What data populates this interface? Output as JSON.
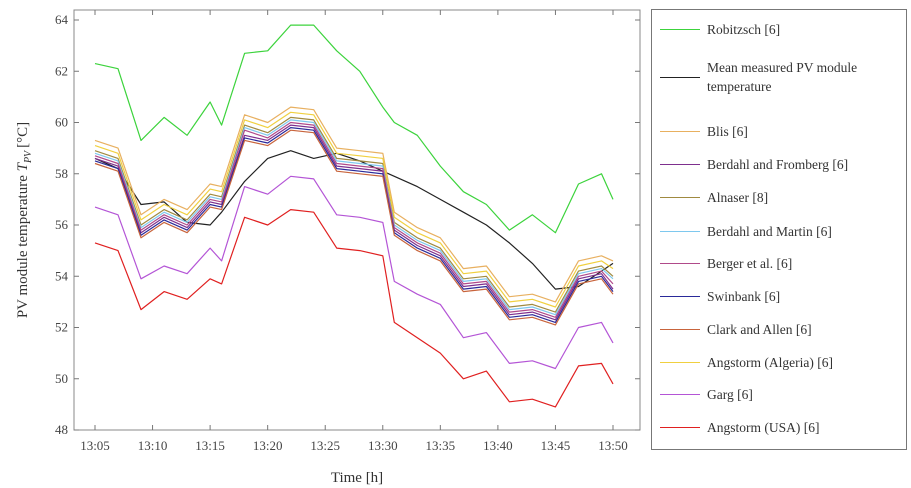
{
  "chart_data": {
    "type": "line",
    "xlabel": "Time [h]",
    "ylabel": "PV module temperature",
    "ylabel_symbol": "T",
    "ylabel_subscript": "PV",
    "ylabel_unit": "[°C]",
    "ylim": [
      48,
      64
    ],
    "yticks": [
      48,
      50,
      52,
      54,
      56,
      58,
      60,
      62,
      64
    ],
    "xlim": [
      "13:05",
      "13:50"
    ],
    "xticks": [
      "13:05",
      "13:10",
      "13:15",
      "13:20",
      "13:25",
      "13:30",
      "13:35",
      "13:40",
      "13:45",
      "13:50"
    ],
    "grid": false,
    "legend_position": "right",
    "x": [
      "13:05",
      "13:07",
      "13:09",
      "13:11",
      "13:13",
      "13:15",
      "13:16",
      "13:18",
      "13:20",
      "13:22",
      "13:24",
      "13:26",
      "13:28",
      "13:30",
      "13:31",
      "13:33",
      "13:35",
      "13:37",
      "13:39",
      "13:41",
      "13:43",
      "13:45",
      "13:47",
      "13:49",
      "13:50"
    ],
    "series": [
      {
        "name": "Robitzsch [6]",
        "color": "#3cd33c",
        "values": [
          62.3,
          62.1,
          59.3,
          60.2,
          59.5,
          60.8,
          59.9,
          62.7,
          62.8,
          63.8,
          63.8,
          62.8,
          62.0,
          60.6,
          60.0,
          59.5,
          58.3,
          57.3,
          56.8,
          55.8,
          56.4,
          55.7,
          57.6,
          58.0,
          57.0
        ]
      },
      {
        "name": "Mean measured PV module temperature",
        "color": "#222222",
        "values": [
          58.6,
          58.2,
          56.8,
          56.9,
          56.1,
          56.0,
          56.5,
          57.7,
          58.6,
          58.9,
          58.6,
          58.8,
          58.5,
          58.1,
          57.9,
          57.5,
          57.0,
          56.5,
          56.0,
          55.3,
          54.5,
          53.5,
          53.6,
          54.2,
          54.5
        ]
      },
      {
        "name": "Blis [6]",
        "color": "#e8b060",
        "values": [
          59.3,
          59.0,
          56.4,
          57.0,
          56.6,
          57.6,
          57.5,
          60.3,
          60.0,
          60.6,
          60.5,
          59.0,
          58.9,
          58.8,
          56.5,
          55.9,
          55.5,
          54.3,
          54.4,
          53.2,
          53.3,
          53.0,
          54.6,
          54.8,
          54.6
        ]
      },
      {
        "name": "Berdahl and Fromberg [6]",
        "color": "#7e2f8e",
        "values": [
          58.6,
          58.3,
          55.7,
          56.3,
          55.9,
          56.9,
          56.8,
          59.5,
          59.3,
          59.9,
          59.8,
          58.3,
          58.2,
          58.1,
          55.8,
          55.2,
          54.8,
          53.6,
          53.7,
          52.5,
          52.6,
          52.3,
          53.9,
          54.1,
          53.5
        ]
      },
      {
        "name": "Alnaser [8]",
        "color": "#a08a40",
        "values": [
          58.9,
          58.6,
          56.0,
          56.6,
          56.2,
          57.2,
          57.1,
          59.9,
          59.6,
          60.2,
          60.1,
          58.6,
          58.5,
          58.4,
          56.1,
          55.5,
          55.1,
          53.9,
          54.0,
          52.8,
          52.9,
          52.6,
          54.2,
          54.4,
          54.0
        ]
      },
      {
        "name": "Berdahl and Martin [6]",
        "color": "#7ec8ee",
        "values": [
          58.8,
          58.5,
          55.9,
          56.5,
          56.1,
          57.1,
          57.0,
          59.8,
          59.5,
          60.1,
          60.0,
          58.5,
          58.4,
          58.3,
          56.0,
          55.4,
          55.0,
          53.8,
          53.9,
          52.7,
          52.8,
          52.5,
          54.1,
          54.3,
          53.9
        ]
      },
      {
        "name": "Berger et al. [6]",
        "color": "#b04a8a",
        "values": [
          58.7,
          58.4,
          55.8,
          56.4,
          56.0,
          57.0,
          56.9,
          59.7,
          59.4,
          60.0,
          59.9,
          58.4,
          58.3,
          58.2,
          55.9,
          55.3,
          54.9,
          53.7,
          53.8,
          52.6,
          52.7,
          52.4,
          54.0,
          54.2,
          53.7
        ]
      },
      {
        "name": "Swinbank [6]",
        "color": "#2a2a9a",
        "values": [
          58.5,
          58.2,
          55.6,
          56.2,
          55.8,
          56.8,
          56.7,
          59.4,
          59.2,
          59.8,
          59.7,
          58.2,
          58.1,
          58.0,
          55.7,
          55.1,
          54.7,
          53.5,
          53.6,
          52.4,
          52.5,
          52.2,
          53.8,
          54.0,
          53.4
        ]
      },
      {
        "name": "Clark and Allen [6]",
        "color": "#c8643c",
        "values": [
          58.4,
          58.1,
          55.5,
          56.1,
          55.7,
          56.7,
          56.6,
          59.3,
          59.1,
          59.7,
          59.6,
          58.1,
          58.0,
          57.9,
          55.6,
          55.0,
          54.6,
          53.4,
          53.5,
          52.3,
          52.4,
          52.1,
          53.7,
          53.9,
          53.3
        ]
      },
      {
        "name": "Angstorm (Algeria) [6]",
        "color": "#f0d040",
        "values": [
          59.1,
          58.8,
          56.2,
          56.8,
          56.4,
          57.4,
          57.3,
          60.1,
          59.8,
          60.4,
          60.3,
          58.8,
          58.7,
          58.6,
          56.3,
          55.7,
          55.3,
          54.1,
          54.2,
          53.0,
          53.1,
          52.8,
          54.4,
          54.6,
          54.3
        ]
      },
      {
        "name": "Garg [6]",
        "color": "#b455d6",
        "values": [
          56.7,
          56.4,
          53.9,
          54.4,
          54.1,
          55.1,
          54.6,
          57.5,
          57.2,
          57.9,
          57.8,
          56.4,
          56.3,
          56.1,
          53.8,
          53.3,
          52.9,
          51.6,
          51.8,
          50.6,
          50.7,
          50.4,
          52.0,
          52.2,
          51.4
        ]
      },
      {
        "name": "Angstorm (USA) [6]",
        "color": "#e02020",
        "values": [
          55.3,
          55.0,
          52.7,
          53.4,
          53.1,
          53.9,
          53.7,
          56.3,
          56.0,
          56.6,
          56.5,
          55.1,
          55.0,
          54.8,
          52.2,
          51.6,
          51.0,
          50.0,
          50.3,
          49.1,
          49.2,
          48.9,
          50.5,
          50.6,
          49.8
        ]
      }
    ]
  }
}
